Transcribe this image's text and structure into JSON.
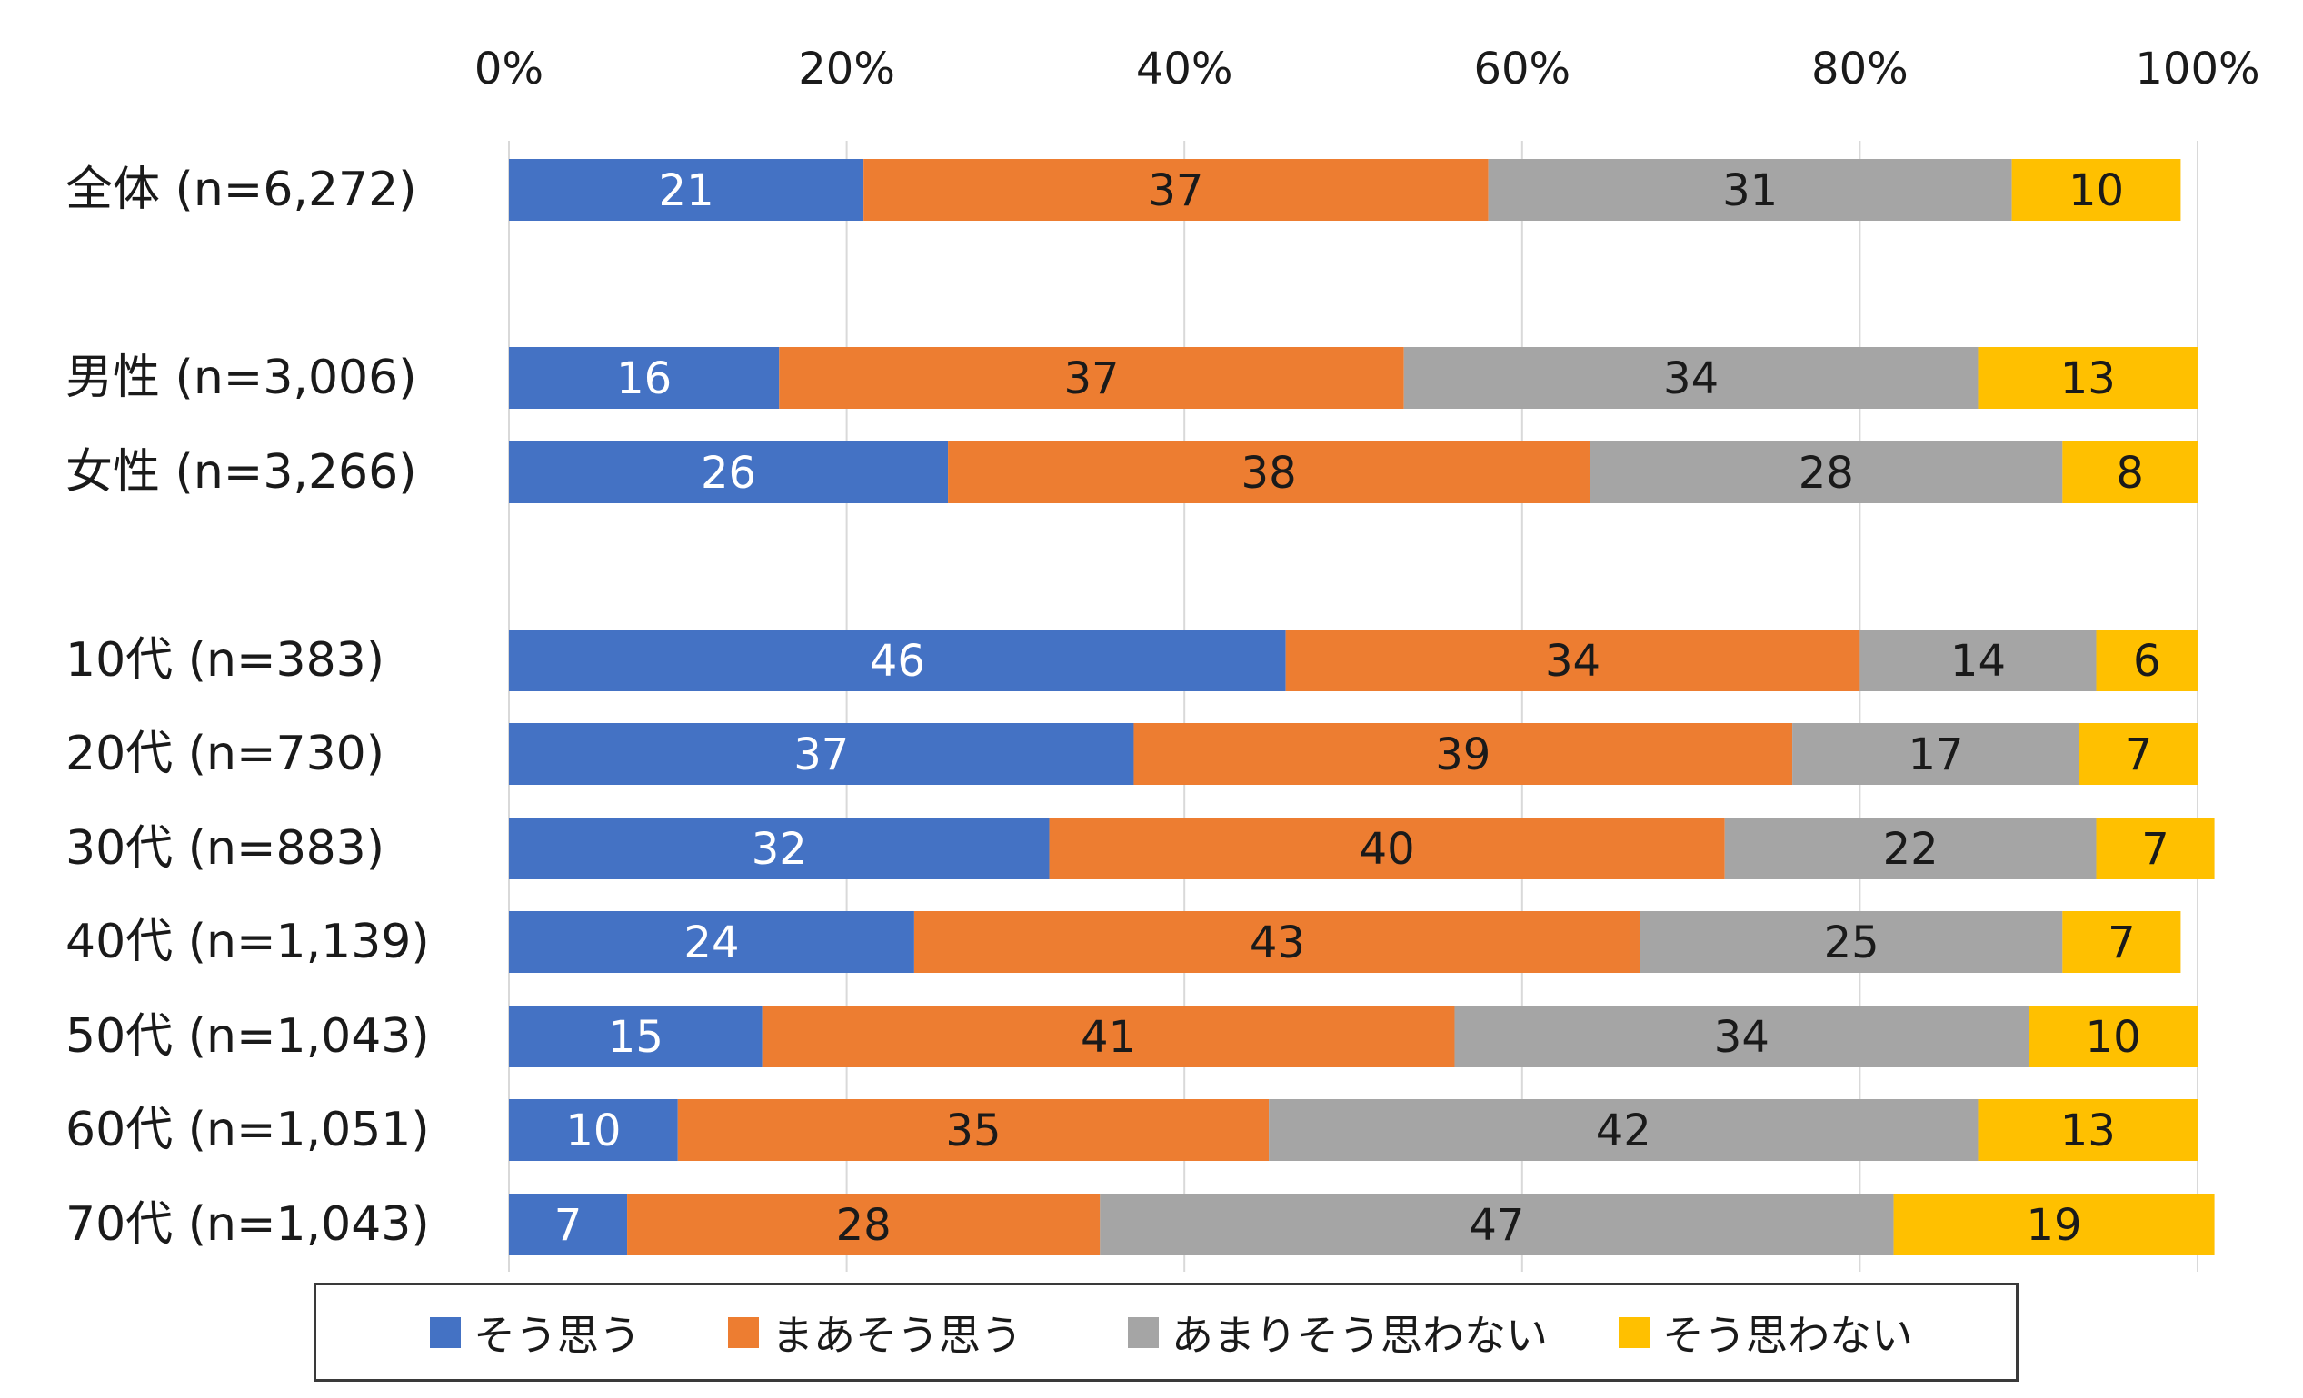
{
  "chart_data": {
    "type": "bar",
    "orientation": "horizontal",
    "stacked": "percent",
    "categories": [
      "全体 (n=6,272)",
      "男性 (n=3,006)",
      "女性 (n=3,266)",
      "10代 (n=383)",
      "20代 (n=730)",
      "30代 (n=883)",
      "40代 (n=1,139)",
      "50代 (n=1,043)",
      "60代 (n=1,051)",
      "70代 (n=1,043)"
    ],
    "series": [
      {
        "name": "そう思う",
        "color": "#4472C4",
        "label_color": "#ffffff",
        "values": [
          21,
          16,
          26,
          46,
          37,
          32,
          24,
          15,
          10,
          7
        ]
      },
      {
        "name": "まあそう思う",
        "color": "#ED7D31",
        "label_color": "#1a1a1a",
        "values": [
          37,
          37,
          38,
          34,
          39,
          40,
          43,
          41,
          35,
          28
        ]
      },
      {
        "name": "あまりそう思わない",
        "color": "#A5A5A5",
        "label_color": "#1a1a1a",
        "values": [
          31,
          34,
          28,
          14,
          17,
          22,
          25,
          34,
          42,
          47
        ]
      },
      {
        "name": "そう思わない",
        "color": "#FFC000",
        "label_color": "#1a1a1a",
        "values": [
          10,
          13,
          8,
          6,
          7,
          7,
          7,
          10,
          13,
          19
        ]
      }
    ],
    "xticks": [
      "0%",
      "20%",
      "40%",
      "60%",
      "80%",
      "100%"
    ],
    "xlim": [
      0,
      100
    ],
    "grid": true,
    "legend_position": "bottom"
  }
}
